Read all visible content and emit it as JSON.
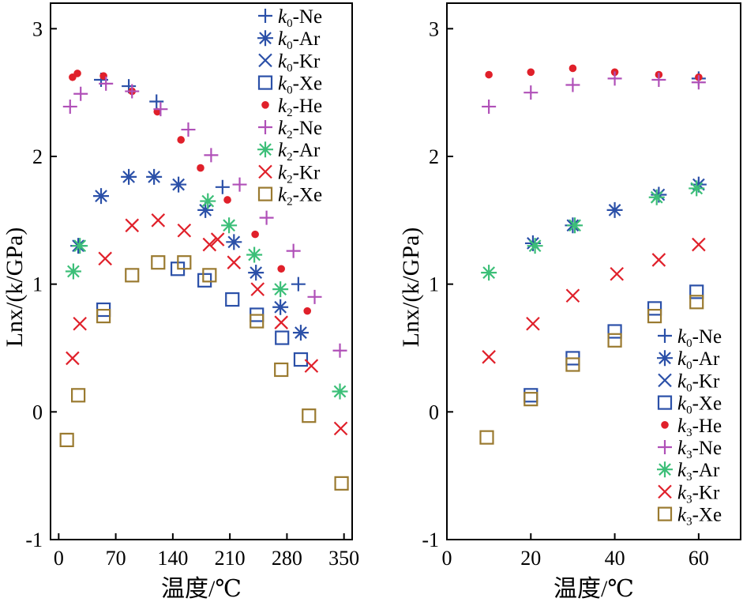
{
  "chart_data": [
    {
      "type": "scatter",
      "xlabel": "温度/℃",
      "ylabel": "Lnx/(k/GPa)",
      "xlim": [
        -10,
        360
      ],
      "ylim": [
        -1,
        3.2
      ],
      "xticks": [
        0,
        70,
        140,
        210,
        280,
        350
      ],
      "yticks": [
        -1,
        0,
        1,
        2,
        3
      ],
      "legend_position": "top-right",
      "series": [
        {
          "name": "k0-Ne",
          "subscript": "0",
          "gas": "Ne",
          "marker": "plus",
          "color": "#2b50a8",
          "x": [
            52,
            86,
            120,
            201,
            294
          ],
          "y": [
            2.6,
            2.55,
            2.43,
            1.76,
            1.0
          ]
        },
        {
          "name": "k0-Ar",
          "subscript": "0",
          "gas": "Ar",
          "marker": "asterisk",
          "color": "#2b50a8",
          "x": [
            24,
            52,
            86,
            117,
            147,
            180,
            215,
            242,
            272,
            297
          ],
          "y": [
            1.3,
            1.69,
            1.84,
            1.84,
            1.78,
            1.58,
            1.33,
            1.09,
            0.82,
            0.62
          ]
        },
        {
          "name": "k0-Kr",
          "subscript": "0",
          "gas": "Kr",
          "marker": "x",
          "color": "#2b50a8",
          "x": [],
          "y": []
        },
        {
          "name": "k0-Xe",
          "subscript": "0",
          "gas": "Xe",
          "marker": "square",
          "color": "#2b50a8",
          "x": [
            55,
            146,
            179,
            213,
            243,
            274,
            297
          ],
          "y": [
            0.8,
            1.12,
            1.03,
            0.88,
            0.76,
            0.58,
            0.41
          ]
        },
        {
          "name": "k2-He",
          "subscript": "2",
          "gas": "He",
          "marker": "dot",
          "color": "#e0202a",
          "x": [
            17,
            23,
            55,
            90,
            121,
            150,
            174,
            207,
            241,
            273,
            305
          ],
          "y": [
            2.62,
            2.65,
            2.63,
            2.51,
            2.35,
            2.13,
            1.91,
            1.66,
            1.39,
            1.12,
            0.79
          ]
        },
        {
          "name": "k2-Ne",
          "subscript": "2",
          "gas": "Ne",
          "marker": "plus",
          "color": "#b050b8",
          "x": [
            14,
            27,
            58,
            90,
            125,
            159,
            187,
            222,
            255,
            288,
            314,
            345
          ],
          "y": [
            2.39,
            2.49,
            2.57,
            2.51,
            2.37,
            2.21,
            2.01,
            1.78,
            1.52,
            1.26,
            0.9,
            0.48
          ]
        },
        {
          "name": "k2-Ar",
          "subscript": "2",
          "gas": "Ar",
          "marker": "asterisk",
          "color": "#3cbf78",
          "x": [
            18,
            26,
            183,
            209,
            240,
            272,
            345
          ],
          "y": [
            1.1,
            1.3,
            1.65,
            1.46,
            1.23,
            0.96,
            0.16
          ]
        },
        {
          "name": "k2-Kr",
          "subscript": "2",
          "gas": "Kr",
          "marker": "x",
          "color": "#e0202a",
          "x": [
            17,
            26,
            57,
            90,
            122,
            154,
            185,
            195,
            215,
            244,
            273,
            310,
            346
          ],
          "y": [
            0.42,
            0.69,
            1.2,
            1.46,
            1.5,
            1.42,
            1.31,
            1.35,
            1.17,
            0.96,
            0.7,
            0.36,
            -0.13
          ]
        },
        {
          "name": "k2-Xe",
          "subscript": "2",
          "gas": "Xe",
          "marker": "square",
          "color": "#9a7a30",
          "x": [
            10,
            24,
            55,
            90,
            122,
            154,
            185,
            243,
            273,
            307,
            347
          ],
          "y": [
            -0.22,
            0.13,
            0.75,
            1.07,
            1.17,
            1.17,
            1.07,
            0.71,
            0.33,
            -0.03,
            -0.56
          ]
        }
      ]
    },
    {
      "type": "scatter",
      "xlabel": "温度/℃",
      "ylabel": "Lnx/(k/GPa)",
      "xlim": [
        0,
        70
      ],
      "ylim": [
        -1,
        3.2
      ],
      "xticks": [
        0,
        20,
        40,
        60
      ],
      "yticks": [
        -1,
        0,
        1,
        2,
        3
      ],
      "legend_position": "bottom-right",
      "series": [
        {
          "name": "k0-Ne",
          "subscript": "0",
          "gas": "Ne",
          "marker": "plus",
          "color": "#2b50a8",
          "x": [
            60
          ],
          "y": [
            2.61
          ]
        },
        {
          "name": "k0-Ar",
          "subscript": "0",
          "gas": "Ar",
          "marker": "asterisk",
          "color": "#2b50a8",
          "x": [
            20.5,
            30,
            40,
            50.5,
            60
          ],
          "y": [
            1.32,
            1.46,
            1.58,
            1.7,
            1.78
          ]
        },
        {
          "name": "k0-Kr",
          "subscript": "0",
          "gas": "Kr",
          "marker": "x",
          "color": "#2b50a8",
          "x": [],
          "y": []
        },
        {
          "name": "k0-Xe",
          "subscript": "0",
          "gas": "Xe",
          "marker": "square",
          "color": "#2b50a8",
          "x": [
            20,
            30,
            40,
            49.5,
            59.5
          ],
          "y": [
            0.13,
            0.42,
            0.63,
            0.81,
            0.94
          ]
        },
        {
          "name": "k3-He",
          "subscript": "3",
          "gas": "He",
          "marker": "dot",
          "color": "#e0202a",
          "x": [
            10,
            20,
            30,
            40,
            50.5,
            60
          ],
          "y": [
            2.64,
            2.66,
            2.69,
            2.66,
            2.64,
            2.62
          ]
        },
        {
          "name": "k3-Ne",
          "subscript": "3",
          "gas": "Ne",
          "marker": "plus",
          "color": "#b050b8",
          "x": [
            10,
            20,
            30,
            40,
            50.5,
            60
          ],
          "y": [
            2.39,
            2.5,
            2.56,
            2.61,
            2.6,
            2.58
          ]
        },
        {
          "name": "k3-Ar",
          "subscript": "3",
          "gas": "Ar",
          "marker": "asterisk",
          "color": "#3cbf78",
          "x": [
            10,
            21,
            30.5,
            50,
            59.5
          ],
          "y": [
            1.09,
            1.3,
            1.46,
            1.68,
            1.75
          ]
        },
        {
          "name": "k3-Kr",
          "subscript": "3",
          "gas": "Kr",
          "marker": "x",
          "color": "#e0202a",
          "x": [
            10,
            20.5,
            30,
            40.5,
            50.5,
            60
          ],
          "y": [
            0.43,
            0.69,
            0.91,
            1.08,
            1.19,
            1.31
          ]
        },
        {
          "name": "k3-Xe",
          "subscript": "3",
          "gas": "Xe",
          "marker": "square",
          "color": "#9a7a30",
          "x": [
            9.5,
            20,
            30,
            40,
            49.5,
            59.5
          ],
          "y": [
            -0.2,
            0.1,
            0.37,
            0.56,
            0.75,
            0.86
          ]
        }
      ]
    }
  ]
}
